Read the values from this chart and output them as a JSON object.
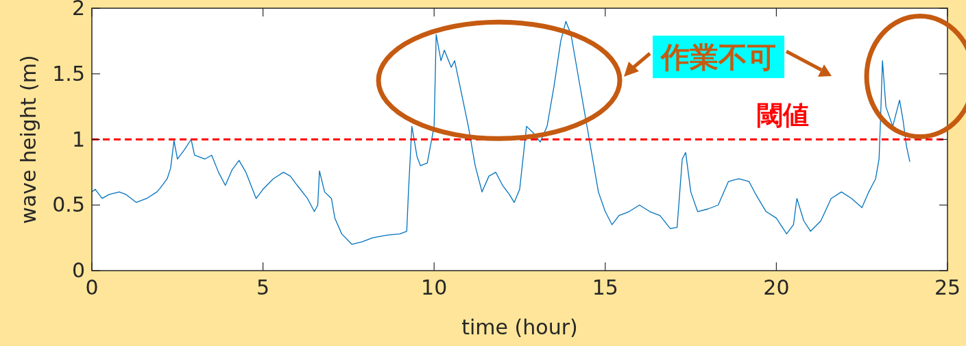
{
  "chart_data": {
    "type": "line",
    "xlabel": "time (hour)",
    "ylabel": "wave height (m)",
    "x": [
      0,
      0.1,
      0.3,
      0.5,
      0.8,
      1.0,
      1.3,
      1.6,
      1.9,
      2.0,
      2.2,
      2.3,
      2.4,
      2.5,
      2.7,
      2.9,
      3.0,
      3.3,
      3.5,
      3.7,
      3.9,
      4.1,
      4.3,
      4.5,
      4.8,
      5.0,
      5.3,
      5.6,
      5.8,
      6.0,
      6.3,
      6.5,
      6.6,
      6.65,
      6.8,
      7.0,
      7.1,
      7.3,
      7.6,
      7.9,
      8.2,
      8.6,
      9.0,
      9.2,
      9.25,
      9.35,
      9.5,
      9.6,
      9.8,
      10.0,
      10.06,
      10.2,
      10.3,
      10.5,
      10.6,
      10.8,
      11.0,
      11.2,
      11.4,
      11.6,
      11.8,
      12.0,
      12.2,
      12.34,
      12.5,
      12.7,
      12.9,
      13.1,
      13.3,
      13.5,
      13.7,
      13.85,
      14.0,
      14.2,
      14.4,
      14.6,
      14.8,
      15.0,
      15.2,
      15.4,
      15.7,
      16.0,
      16.3,
      16.6,
      16.9,
      17.1,
      17.25,
      17.35,
      17.5,
      17.7,
      18.0,
      18.3,
      18.6,
      18.9,
      19.2,
      19.4,
      19.7,
      20.0,
      20.3,
      20.5,
      20.6,
      20.8,
      21.0,
      21.3,
      21.6,
      21.9,
      22.2,
      22.5,
      22.7,
      22.9,
      23.0,
      23.05,
      23.1,
      23.2,
      23.4,
      23.6,
      23.7,
      23.8,
      23.9
    ],
    "series": [
      {
        "color": "#0072bd",
        "values": [
          0.6,
          0.62,
          0.55,
          0.58,
          0.6,
          0.58,
          0.52,
          0.55,
          0.6,
          0.63,
          0.7,
          0.78,
          0.99,
          0.85,
          0.92,
          1.0,
          0.88,
          0.85,
          0.88,
          0.75,
          0.65,
          0.77,
          0.84,
          0.75,
          0.55,
          0.62,
          0.7,
          0.75,
          0.72,
          0.65,
          0.55,
          0.45,
          0.5,
          0.76,
          0.6,
          0.55,
          0.4,
          0.28,
          0.2,
          0.22,
          0.25,
          0.27,
          0.28,
          0.3,
          0.6,
          1.1,
          0.87,
          0.8,
          0.82,
          1.1,
          1.8,
          1.6,
          1.68,
          1.55,
          1.6,
          1.35,
          1.1,
          0.8,
          0.6,
          0.72,
          0.75,
          0.65,
          0.58,
          0.52,
          0.62,
          1.1,
          1.05,
          0.98,
          1.1,
          1.4,
          1.75,
          1.9,
          1.8,
          1.5,
          1.2,
          0.9,
          0.6,
          0.45,
          0.35,
          0.42,
          0.45,
          0.5,
          0.45,
          0.42,
          0.32,
          0.33,
          0.85,
          0.9,
          0.6,
          0.45,
          0.47,
          0.5,
          0.68,
          0.7,
          0.68,
          0.58,
          0.45,
          0.4,
          0.28,
          0.35,
          0.55,
          0.38,
          0.3,
          0.38,
          0.55,
          0.6,
          0.55,
          0.48,
          0.6,
          0.7,
          0.85,
          1.2,
          1.6,
          1.25,
          1.1,
          1.3,
          1.15,
          0.95,
          0.83
        ]
      }
    ],
    "xlim": [
      0,
      25
    ],
    "ylim": [
      0,
      2
    ],
    "xticks": [
      0,
      5,
      10,
      15,
      20,
      25
    ],
    "yticks": [
      0,
      0.5,
      1,
      1.5,
      2
    ],
    "ref_lines": [
      {
        "axis": "y",
        "value": 1,
        "label": "閾値",
        "color": "#ff0000",
        "line_style": "dashed"
      }
    ],
    "annotations": [
      "作業不可"
    ]
  }
}
